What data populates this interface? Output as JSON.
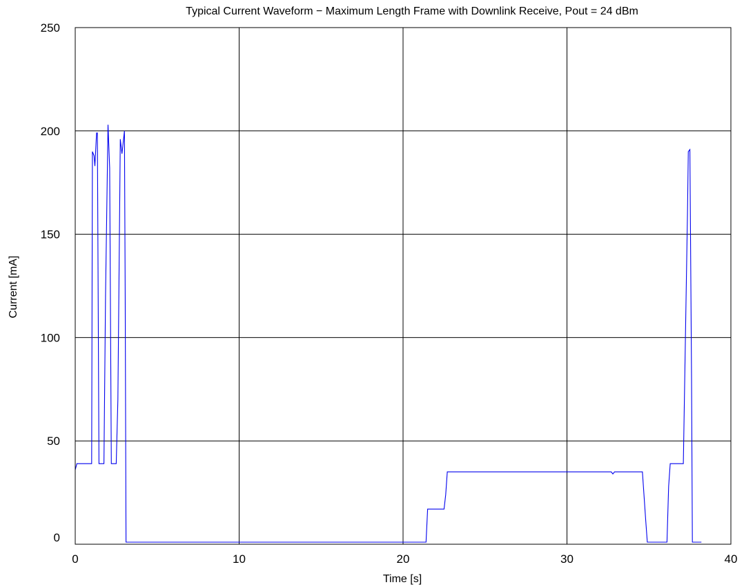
{
  "chart_data": {
    "type": "line",
    "title": "Typical Current Waveform − Maximum Length Frame with Downlink Receive, Pout = 24 dBm",
    "xlabel": "Time [s]",
    "ylabel": "Current [mA]",
    "xlim": [
      0,
      40
    ],
    "ylim": [
      0,
      250
    ],
    "xticks": [
      0,
      10,
      20,
      30,
      40
    ],
    "yticks": [
      0,
      50,
      100,
      150,
      200,
      250
    ],
    "x_tick_labels": [
      "0",
      "10",
      "20",
      "30",
      "40"
    ],
    "y_tick_labels": [
      "0",
      "50",
      "100",
      "150",
      200,
      "250"
    ],
    "grid": true,
    "series": [
      {
        "color": "#0000ee",
        "points": [
          [
            0.0,
            36
          ],
          [
            0.1,
            39
          ],
          [
            0.5,
            39
          ],
          [
            0.9,
            39
          ],
          [
            1.0,
            39
          ],
          [
            1.05,
            190
          ],
          [
            1.15,
            188
          ],
          [
            1.2,
            183
          ],
          [
            1.3,
            199
          ],
          [
            1.35,
            199
          ],
          [
            1.45,
            39
          ],
          [
            1.75,
            39
          ],
          [
            1.85,
            120
          ],
          [
            2.0,
            203
          ],
          [
            2.1,
            182
          ],
          [
            2.2,
            39
          ],
          [
            2.5,
            39
          ],
          [
            2.6,
            70
          ],
          [
            2.75,
            196
          ],
          [
            2.85,
            189
          ],
          [
            3.0,
            200
          ],
          [
            3.05,
            120
          ],
          [
            3.1,
            1
          ],
          [
            10.0,
            1
          ],
          [
            20.0,
            1
          ],
          [
            21.4,
            1
          ],
          [
            21.5,
            17
          ],
          [
            22.5,
            17
          ],
          [
            22.6,
            24
          ],
          [
            22.7,
            35
          ],
          [
            30.0,
            35
          ],
          [
            32.7,
            35
          ],
          [
            32.8,
            34
          ],
          [
            32.9,
            35
          ],
          [
            34.6,
            35
          ],
          [
            34.8,
            12
          ],
          [
            34.9,
            1
          ],
          [
            36.1,
            1
          ],
          [
            36.2,
            28
          ],
          [
            36.3,
            39
          ],
          [
            37.0,
            39
          ],
          [
            37.1,
            39
          ],
          [
            37.35,
            160
          ],
          [
            37.4,
            190
          ],
          [
            37.5,
            191
          ],
          [
            37.6,
            80
          ],
          [
            37.65,
            1
          ],
          [
            38.2,
            1
          ]
        ]
      }
    ]
  }
}
